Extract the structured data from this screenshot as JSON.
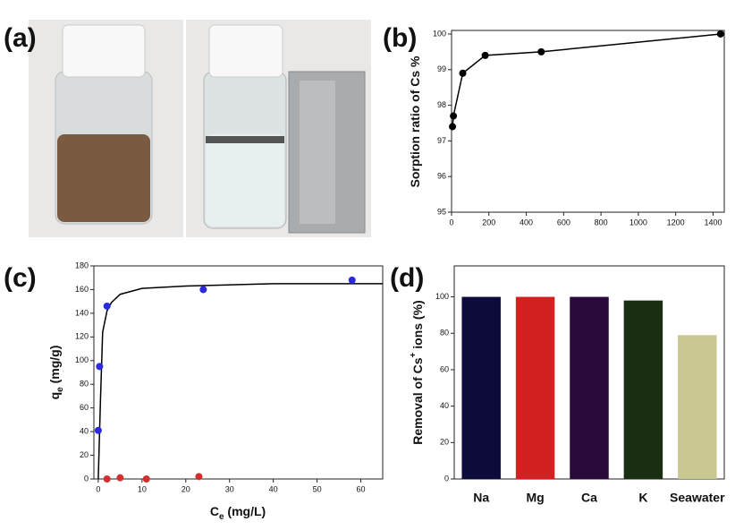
{
  "photo": {
    "label": "(a)"
  },
  "chart_data": [
    {
      "type": "line",
      "label": "(b)",
      "ylabel": [
        {
          "text": "Sorption ratio of Cs %"
        }
      ],
      "xlim": [
        0,
        1460
      ],
      "xticks": [
        0,
        200,
        400,
        600,
        800,
        1000,
        1200,
        1400
      ],
      "ylim": [
        95,
        100.1
      ],
      "yticks": [
        95,
        96,
        97,
        98,
        99,
        100
      ],
      "series": [
        {
          "color": "#000000",
          "style": "line+markers",
          "x": [
            5,
            10,
            60,
            180,
            480,
            1440
          ],
          "values": [
            97.4,
            97.7,
            98.9,
            99.4,
            99.5,
            100
          ]
        }
      ]
    },
    {
      "type": "scatter",
      "label": "(c)",
      "xlabel": [
        {
          "text": "C"
        },
        {
          "text": "e",
          "sub": true
        },
        {
          "text": " (mg/L)"
        }
      ],
      "ylabel": [
        {
          "text": "q"
        },
        {
          "text": "e",
          "sub": true
        },
        {
          "text": " (mg/g)"
        }
      ],
      "xlim": [
        -1,
        65
      ],
      "xticks": [
        0,
        10,
        20,
        30,
        40,
        50,
        60
      ],
      "ylim": [
        0,
        180
      ],
      "yticks": [
        0,
        20,
        40,
        60,
        80,
        100,
        120,
        140,
        160,
        180
      ],
      "series": [
        {
          "color": "#000000",
          "style": "line",
          "x": [
            0,
            0.5,
            1,
            2,
            3,
            5,
            10,
            20,
            40,
            65
          ],
          "values": [
            0,
            66,
            124,
            142,
            149,
            156,
            161,
            163,
            165,
            165
          ]
        },
        {
          "color": "#2b2bdc",
          "style": "markers",
          "x": [
            0,
            0.3,
            2,
            24,
            58
          ],
          "values": [
            41,
            95,
            146,
            160,
            168
          ]
        },
        {
          "color": "#d03030",
          "style": "markers",
          "x": [
            2,
            5,
            11,
            23
          ],
          "values": [
            0,
            1,
            0,
            2
          ]
        }
      ]
    },
    {
      "type": "bar",
      "label": "(d)",
      "ylabel": [
        {
          "text": "Removal of Cs"
        },
        {
          "text": "+",
          "sup": true
        },
        {
          "text": " ions (%)"
        }
      ],
      "categories": [
        "Na",
        "Mg",
        "Ca",
        "K",
        "Seawater"
      ],
      "values": [
        100,
        100,
        100,
        98,
        79
      ],
      "colors": [
        "#0d0a3c",
        "#d42020",
        "#2a0a3a",
        "#1a2e12",
        "#c8c890"
      ],
      "ylim": [
        0,
        117
      ],
      "yticks": [
        0,
        20,
        40,
        60,
        80,
        100
      ]
    }
  ]
}
